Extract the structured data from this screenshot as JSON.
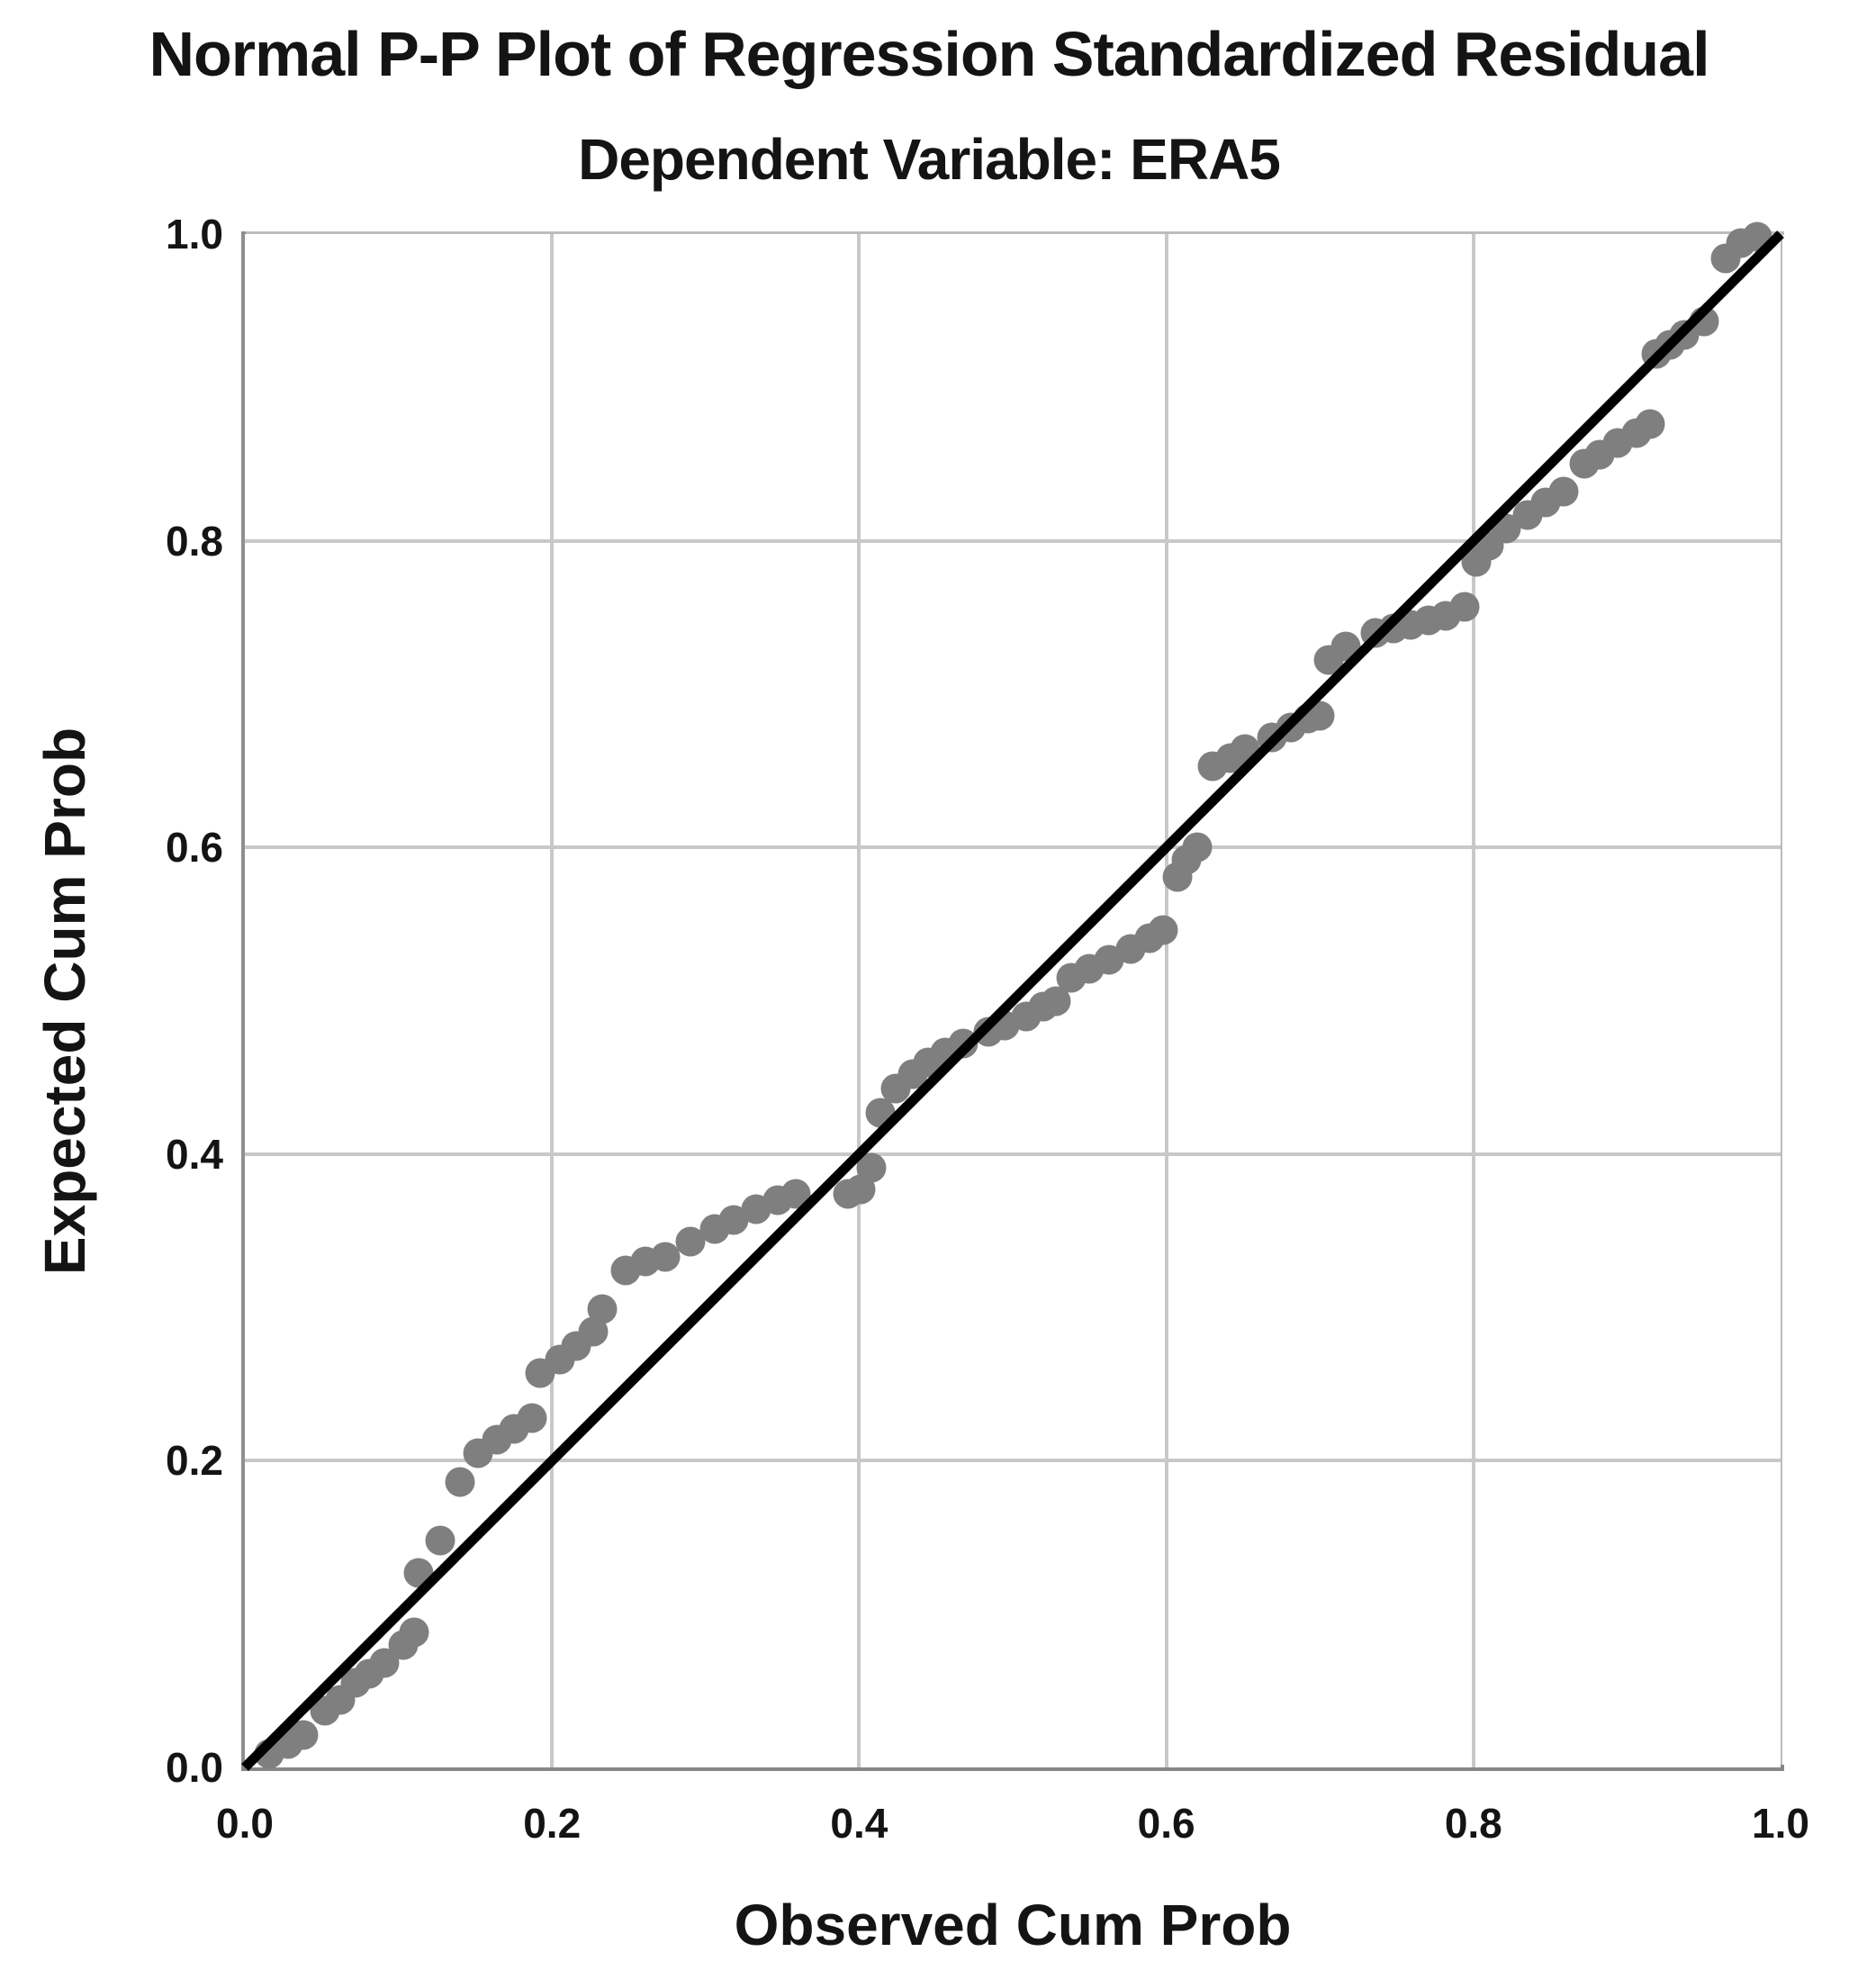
{
  "chart_data": {
    "type": "scatter",
    "title": "Normal P-P Plot of Regression Standardized Residual",
    "subtitle": "Dependent Variable: ERA5",
    "xlabel": "Observed Cum Prob",
    "ylabel": "Expected Cum Prob",
    "xlim": [
      0.0,
      1.0
    ],
    "ylim": [
      0.0,
      1.0
    ],
    "grid": true,
    "legend": false,
    "x_ticks": {
      "values": [
        0.0,
        0.2,
        0.4,
        0.6,
        0.8,
        1.0
      ],
      "labels": [
        "0.0",
        "0.2",
        "0.4",
        "0.6",
        "0.8",
        "1.0"
      ]
    },
    "y_ticks": {
      "values": [
        0.0,
        0.2,
        0.4,
        0.6,
        0.8,
        1.0
      ],
      "labels": [
        "0.0",
        "0.2",
        "0.4",
        "0.6",
        "0.8",
        "1.0"
      ]
    },
    "grid_values": [
      0.2,
      0.4,
      0.6,
      0.8
    ],
    "reference_line": {
      "x1": 0,
      "y1": 0,
      "x2": 1,
      "y2": 1
    },
    "series": [
      {
        "name": "Regression standardized residual",
        "marker": "circle",
        "points": [
          [
            0.016,
            0.009
          ],
          [
            0.028,
            0.015
          ],
          [
            0.038,
            0.021
          ],
          [
            0.052,
            0.037
          ],
          [
            0.062,
            0.044
          ],
          [
            0.072,
            0.055
          ],
          [
            0.081,
            0.061
          ],
          [
            0.091,
            0.068
          ],
          [
            0.103,
            0.08
          ],
          [
            0.11,
            0.088
          ],
          [
            0.113,
            0.127
          ],
          [
            0.127,
            0.148
          ],
          [
            0.14,
            0.186
          ],
          [
            0.152,
            0.205
          ],
          [
            0.164,
            0.214
          ],
          [
            0.175,
            0.221
          ],
          [
            0.187,
            0.228
          ],
          [
            0.192,
            0.257
          ],
          [
            0.205,
            0.266
          ],
          [
            0.216,
            0.275
          ],
          [
            0.227,
            0.284
          ],
          [
            0.233,
            0.299
          ],
          [
            0.248,
            0.324
          ],
          [
            0.261,
            0.33
          ],
          [
            0.274,
            0.333
          ],
          [
            0.29,
            0.343
          ],
          [
            0.306,
            0.351
          ],
          [
            0.318,
            0.357
          ],
          [
            0.333,
            0.364
          ],
          [
            0.347,
            0.37
          ],
          [
            0.359,
            0.374
          ],
          [
            0.393,
            0.374
          ],
          [
            0.401,
            0.377
          ],
          [
            0.408,
            0.391
          ],
          [
            0.414,
            0.427
          ],
          [
            0.424,
            0.443
          ],
          [
            0.435,
            0.452
          ],
          [
            0.445,
            0.46
          ],
          [
            0.456,
            0.466
          ],
          [
            0.468,
            0.472
          ],
          [
            0.484,
            0.48
          ],
          [
            0.495,
            0.484
          ],
          [
            0.509,
            0.49
          ],
          [
            0.52,
            0.496
          ],
          [
            0.528,
            0.5
          ],
          [
            0.538,
            0.515
          ],
          [
            0.55,
            0.521
          ],
          [
            0.563,
            0.527
          ],
          [
            0.577,
            0.534
          ],
          [
            0.589,
            0.541
          ],
          [
            0.598,
            0.546
          ],
          [
            0.607,
            0.581
          ],
          [
            0.613,
            0.592
          ],
          [
            0.62,
            0.6
          ],
          [
            0.63,
            0.653
          ],
          [
            0.642,
            0.658
          ],
          [
            0.651,
            0.664
          ],
          [
            0.669,
            0.672
          ],
          [
            0.681,
            0.678
          ],
          [
            0.692,
            0.684
          ],
          [
            0.7,
            0.686
          ],
          [
            0.706,
            0.722
          ],
          [
            0.717,
            0.731
          ],
          [
            0.736,
            0.74
          ],
          [
            0.748,
            0.743
          ],
          [
            0.759,
            0.745
          ],
          [
            0.771,
            0.748
          ],
          [
            0.782,
            0.751
          ],
          [
            0.794,
            0.757
          ],
          [
            0.802,
            0.786
          ],
          [
            0.81,
            0.797
          ],
          [
            0.821,
            0.808
          ],
          [
            0.835,
            0.817
          ],
          [
            0.847,
            0.825
          ],
          [
            0.859,
            0.832
          ],
          [
            0.872,
            0.85
          ],
          [
            0.882,
            0.856
          ],
          [
            0.894,
            0.864
          ],
          [
            0.906,
            0.87
          ],
          [
            0.915,
            0.876
          ],
          [
            0.919,
            0.922
          ],
          [
            0.928,
            0.928
          ],
          [
            0.937,
            0.934
          ],
          [
            0.95,
            0.943
          ],
          [
            0.964,
            0.984
          ],
          [
            0.974,
            0.994
          ],
          [
            0.985,
            0.998
          ]
        ]
      }
    ]
  },
  "colors": {
    "dot": "#7f7f7f",
    "reference_line": "#000000",
    "gridline": "#c8c8c8",
    "axis_left": "#8f8f8f",
    "axis_bottom": "#878787",
    "frame": "#bcbcbc",
    "text": "#141414",
    "background": "#ffffff"
  }
}
